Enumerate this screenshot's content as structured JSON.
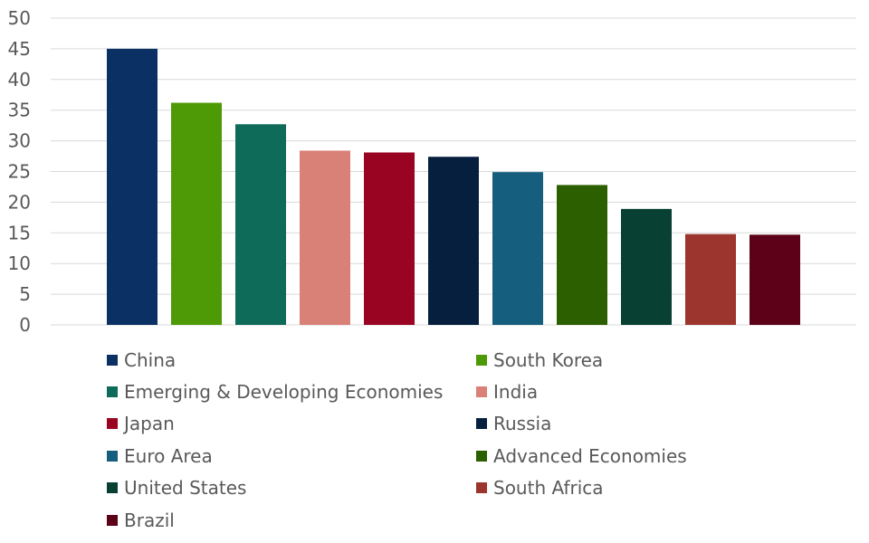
{
  "chart_data": {
    "type": "bar",
    "categories": [
      "China",
      "South Korea",
      "Emerging & Developing Economies",
      "India",
      "Japan",
      "Russia",
      "Euro Area",
      "Advanced Economies",
      "United States",
      "South Africa",
      "Brazil"
    ],
    "values": [
      45.0,
      36.2,
      32.7,
      28.4,
      28.1,
      27.4,
      24.9,
      22.8,
      18.9,
      14.8,
      14.7
    ],
    "colors": [
      "#0b3064",
      "#4e9a06",
      "#0e6b5a",
      "#d98077",
      "#9a0423",
      "#061f3f",
      "#165e7e",
      "#2c5f00",
      "#084033",
      "#9c352d",
      "#5c0118"
    ],
    "title": "",
    "xlabel": "",
    "ylabel": "",
    "ylim": [
      0,
      50
    ],
    "yticks": [
      "0",
      "5",
      "10",
      "15",
      "20",
      "25",
      "30",
      "35",
      "40",
      "45",
      "50"
    ],
    "grid": true,
    "legend_position": "bottom"
  }
}
